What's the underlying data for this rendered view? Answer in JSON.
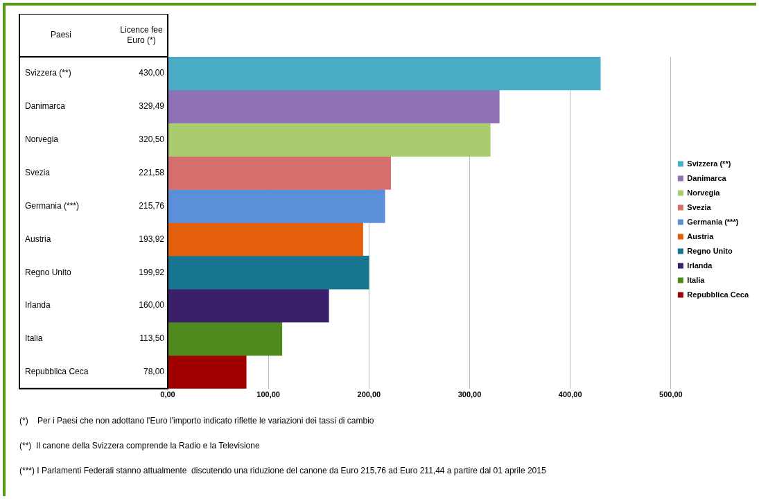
{
  "chart_data": {
    "type": "bar",
    "orientation": "horizontal",
    "categories": [
      "Svizzera (**)",
      "Danimarca",
      "Norvegia",
      "Svezia",
      "Germania (***)",
      "Austria",
      "Regno Unito",
      "Irlanda",
      "Italia",
      "Repubblica Ceca"
    ],
    "series": [
      {
        "name": "Svizzera (**)",
        "color": "#4bacc6",
        "values": [
          430,
          null,
          null,
          null,
          null,
          null,
          null,
          null,
          null,
          null
        ],
        "value_labels": [
          "430,00",
          null,
          null,
          null,
          null,
          null,
          null,
          null,
          null,
          null
        ]
      },
      {
        "name": "Danimarca",
        "color": "#8e72b4",
        "values": [
          null,
          329.49,
          null,
          null,
          null,
          null,
          null,
          null,
          null,
          null
        ],
        "value_labels": [
          null,
          "329,49",
          null,
          null,
          null,
          null,
          null,
          null,
          null,
          null
        ]
      },
      {
        "name": "Norvegia",
        "color": "#a9cc6e",
        "values": [
          null,
          null,
          320.5,
          null,
          null,
          null,
          null,
          null,
          null,
          null
        ],
        "value_labels": [
          null,
          null,
          "320,50",
          null,
          null,
          null,
          null,
          null,
          null,
          null
        ]
      },
      {
        "name": "Svezia",
        "color": "#d46f6c",
        "values": [
          null,
          null,
          null,
          221.58,
          null,
          null,
          null,
          null,
          null,
          null
        ],
        "value_labels": [
          null,
          null,
          null,
          "221,58",
          null,
          null,
          null,
          null,
          null,
          null
        ]
      },
      {
        "name": "Germania (***)",
        "color": "#5b8fd9",
        "values": [
          null,
          null,
          null,
          null,
          215.76,
          null,
          null,
          null,
          null,
          null
        ],
        "value_labels": [
          null,
          null,
          null,
          null,
          "215,76",
          null,
          null,
          null,
          null,
          null
        ]
      },
      {
        "name": "Austria",
        "color": "#e35f0a",
        "values": [
          null,
          null,
          null,
          null,
          null,
          193.92,
          null,
          null,
          null,
          null
        ],
        "value_labels": [
          null,
          null,
          null,
          null,
          null,
          "193,92",
          null,
          null,
          null,
          null
        ]
      },
      {
        "name": "Regno Unito",
        "color": "#17758f",
        "values": [
          null,
          null,
          null,
          null,
          null,
          null,
          199.92,
          null,
          null,
          null
        ],
        "value_labels": [
          null,
          null,
          null,
          null,
          null,
          null,
          "199,92",
          null,
          null,
          null
        ]
      },
      {
        "name": "Irlanda",
        "color": "#3b1f6b",
        "values": [
          null,
          null,
          null,
          null,
          null,
          null,
          null,
          160,
          null,
          null
        ],
        "value_labels": [
          null,
          null,
          null,
          null,
          null,
          null,
          null,
          "160,00",
          null,
          null
        ]
      },
      {
        "name": "Italia",
        "color": "#4f8a1f",
        "values": [
          null,
          null,
          null,
          null,
          null,
          null,
          null,
          null,
          113.5,
          null
        ],
        "value_labels": [
          null,
          null,
          null,
          null,
          null,
          null,
          null,
          null,
          "113,50",
          null
        ]
      },
      {
        "name": "Repubblica Ceca",
        "color": "#a00000",
        "values": [
          null,
          null,
          null,
          null,
          null,
          null,
          null,
          null,
          null,
          78
        ],
        "value_labels": [
          null,
          null,
          null,
          null,
          null,
          null,
          null,
          null,
          null,
          "78,00"
        ]
      }
    ],
    "xlim": [
      0,
      500
    ],
    "xticks": [
      {
        "value": 0,
        "label": "0,00"
      },
      {
        "value": 100,
        "label": "100,00"
      },
      {
        "value": 200,
        "label": "200,00"
      },
      {
        "value": 300,
        "label": "300,00"
      },
      {
        "value": 400,
        "label": "400,00"
      },
      {
        "value": 500,
        "label": "500,00"
      }
    ],
    "grid": "x",
    "legend": "right",
    "tick_labels": "x",
    "annotations": [
      "Paesi",
      "Licence fee Euro (*)",
      "(*)    Per i Paesi che non adottano l'Euro l'importo indicato riflette le variazioni dei tassi di cambio",
      "(**)  Il canone della Svizzera comprende la Radio e la Televisione",
      "(***) I Parlamenti Federali stanno attualmente  discutendo una riduzione del canone da Euro 215,76 ad Euro 211,44 a partire dal 01 aprile 2015"
    ]
  }
}
